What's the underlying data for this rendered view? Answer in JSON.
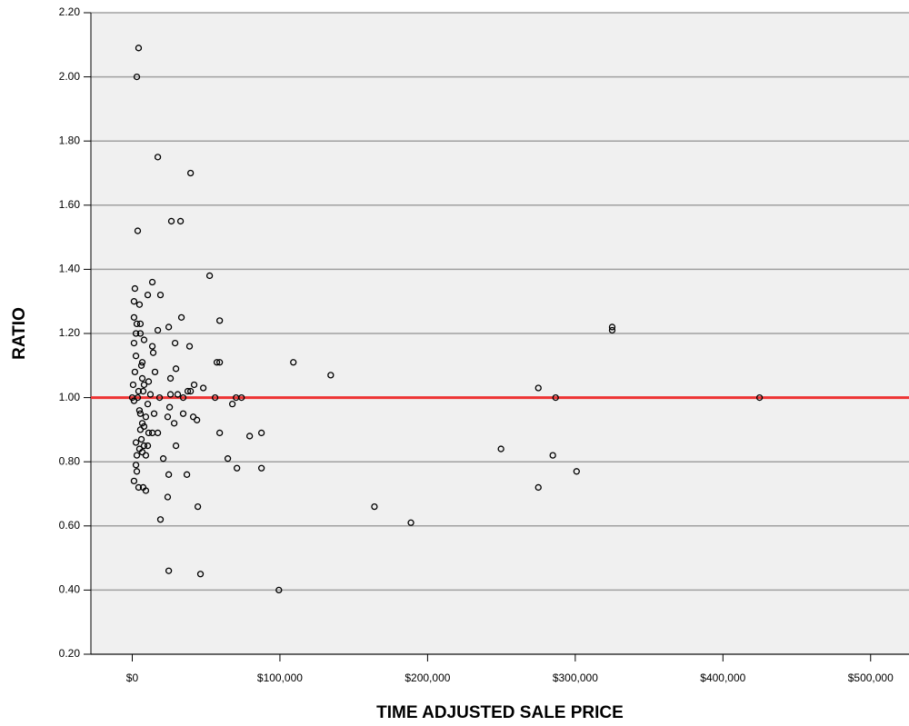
{
  "chart_data": {
    "type": "scatter",
    "xlabel": "TIME ADJUSTED SALE PRICE",
    "ylabel": "RATIO",
    "xlim": [
      -28000,
      526000
    ],
    "ylim": [
      0.2,
      2.2
    ],
    "xticks": [
      {
        "value": 0,
        "label": "$0"
      },
      {
        "value": 100000,
        "label": "$100,000"
      },
      {
        "value": 200000,
        "label": "$200,000"
      },
      {
        "value": 300000,
        "label": "$300,000"
      },
      {
        "value": 400000,
        "label": "$400,000"
      },
      {
        "value": 500000,
        "label": "$500,000"
      }
    ],
    "yticks": [
      {
        "value": 0.2,
        "label": "0.20"
      },
      {
        "value": 0.4,
        "label": "0.40"
      },
      {
        "value": 0.6,
        "label": "0.60"
      },
      {
        "value": 0.8,
        "label": "0.80"
      },
      {
        "value": 1,
        "label": "1.00"
      },
      {
        "value": 1.2,
        "label": "1.20"
      },
      {
        "value": 1.4,
        "label": "1.40"
      },
      {
        "value": 1.6,
        "label": "1.60"
      },
      {
        "value": 1.8,
        "label": "1.80"
      },
      {
        "value": 2,
        "label": "2.00"
      },
      {
        "value": 2.2,
        "label": "2.20"
      }
    ],
    "grid": true,
    "reference_line": {
      "value": 1,
      "color": "#ee3333"
    },
    "series": [
      {
        "color": "#000000",
        "x": [
          4300,
          3100,
          17300,
          39500,
          3700,
          26500,
          32700,
          52400,
          13600,
          1800,
          10500,
          19100,
          1200,
          4900,
          1200,
          3100,
          5500,
          33300,
          59200,
          17300,
          24700,
          2500,
          5500,
          8000,
          1200,
          13600,
          29000,
          38800,
          325000,
          325000,
          14200,
          2500,
          6800,
          6200,
          57300,
          59200,
          109100,
          134400,
          1800,
          15400,
          29600,
          25900,
          6800,
          11100,
          8000,
          600,
          41900,
          48100,
          275000,
          4300,
          7400,
          37600,
          12300,
          25900,
          30800,
          39500,
          0,
          3700,
          18500,
          34500,
          56100,
          70300,
          74000,
          286700,
          424800,
          1200,
          10500,
          67800,
          25300,
          59200,
          34500,
          4900,
          5500,
          14800,
          24000,
          9200,
          41300,
          43800,
          6800,
          28400,
          8000,
          5500,
          11100,
          13600,
          17300,
          79500,
          87500,
          6200,
          2500,
          8000,
          10500,
          29600,
          249700,
          4900,
          6800,
          3100,
          9200,
          284800,
          21000,
          64700,
          2500,
          3100,
          70900,
          87500,
          300900,
          37000,
          24700,
          1200,
          4300,
          7400,
          9200,
          275000,
          24000,
          44400,
          164000,
          19100,
          188700,
          24700,
          46200,
          99300
        ],
        "values": [
          2.09,
          2.0,
          1.75,
          1.7,
          1.52,
          1.55,
          1.55,
          1.38,
          1.36,
          1.34,
          1.32,
          1.32,
          1.3,
          1.29,
          1.25,
          1.23,
          1.23,
          1.25,
          1.24,
          1.21,
          1.22,
          1.2,
          1.2,
          1.18,
          1.17,
          1.16,
          1.17,
          1.16,
          1.22,
          1.21,
          1.14,
          1.13,
          1.11,
          1.1,
          1.11,
          1.11,
          1.11,
          1.07,
          1.08,
          1.08,
          1.09,
          1.06,
          1.06,
          1.05,
          1.04,
          1.04,
          1.04,
          1.03,
          1.03,
          1.02,
          1.02,
          1.02,
          1.01,
          1.01,
          1.01,
          1.02,
          1.0,
          1.0,
          1.0,
          1.0,
          1.0,
          1.0,
          1.0,
          1.0,
          1.0,
          0.99,
          0.98,
          0.98,
          0.97,
          0.89,
          0.95,
          0.96,
          0.95,
          0.95,
          0.94,
          0.94,
          0.94,
          0.93,
          0.92,
          0.92,
          0.91,
          0.9,
          0.89,
          0.89,
          0.89,
          0.88,
          0.89,
          0.87,
          0.86,
          0.85,
          0.85,
          0.85,
          0.84,
          0.84,
          0.83,
          0.82,
          0.82,
          0.82,
          0.81,
          0.81,
          0.79,
          0.77,
          0.78,
          0.78,
          0.77,
          0.76,
          0.76,
          0.74,
          0.72,
          0.72,
          0.71,
          0.72,
          0.69,
          0.66,
          0.66,
          0.62,
          0.61,
          0.46,
          0.45,
          0.4
        ]
      }
    ]
  }
}
